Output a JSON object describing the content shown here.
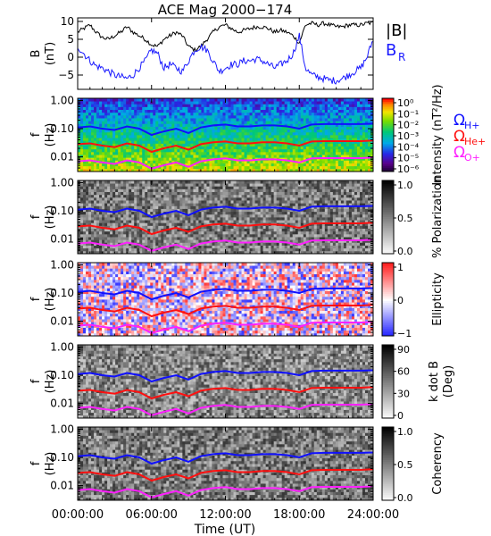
{
  "title": "ACE Mag 2000−174",
  "xaxis": {
    "label": "Time (UT)",
    "ticks": [
      "00:00:00",
      "06:00:00",
      "12:00:00",
      "18:00:00",
      "24:00:00"
    ],
    "tick_hours": [
      0,
      6,
      12,
      18,
      24
    ],
    "range_hours": [
      0,
      24
    ]
  },
  "colors": {
    "B_total": "#000000",
    "B_R": "#1a1aff",
    "omega_H": "#1010ff",
    "omega_He": "#ff1010",
    "omega_O": "#ff20ff"
  },
  "legend": {
    "B_total": "|B|",
    "B_R": "B",
    "B_R_sub": "R",
    "omega_symbol": "Ω",
    "omega_H_sub": "H+",
    "omega_He_sub": "He+",
    "omega_O_sub": "O+"
  },
  "chart_data": [
    {
      "type": "line",
      "panel": "magnetic-field",
      "ylabel": "B",
      "ylabel_unit": "(nT)",
      "ylim": [
        -9,
        11
      ],
      "yticks": [
        "10",
        "5",
        "0",
        "−5"
      ],
      "ytick_values": [
        10,
        5,
        0,
        -5
      ],
      "series": [
        {
          "name": "|B|",
          "x": [
            0,
            0.5,
            1,
            1.5,
            2,
            2.5,
            3,
            3.5,
            4,
            4.5,
            5,
            5.5,
            6,
            6.5,
            7,
            7.5,
            8,
            8.5,
            9,
            9.5,
            10,
            10.5,
            11,
            11.5,
            12,
            12.5,
            13,
            13.5,
            14,
            14.5,
            15,
            15.5,
            16,
            16.5,
            17,
            17.5,
            18,
            18.5,
            19,
            19.5,
            20,
            20.5,
            21,
            21.5,
            22,
            22.5,
            23,
            23.5,
            24
          ],
          "y": [
            7,
            8,
            9,
            7,
            5.5,
            5,
            6,
            7,
            8.5,
            7,
            6,
            5,
            3.5,
            3,
            5,
            6,
            7,
            6,
            3,
            2,
            3,
            5,
            7,
            8.5,
            9,
            8,
            7,
            7.5,
            8,
            8.5,
            8.5,
            8,
            7,
            7.5,
            7,
            6,
            4,
            9,
            9.5,
            9,
            9.5,
            9,
            8.5,
            8.5,
            9,
            9,
            9,
            9.5,
            9.5
          ]
        },
        {
          "name": "B_R",
          "x": [
            0,
            0.5,
            1,
            1.5,
            2,
            2.5,
            3,
            3.5,
            4,
            4.5,
            5,
            5.5,
            6,
            6.5,
            7,
            7.5,
            8,
            8.5,
            9,
            9.5,
            10,
            10.5,
            11,
            11.5,
            12,
            12.5,
            13,
            13.5,
            14,
            14.5,
            15,
            15.5,
            16,
            16.5,
            17,
            17.5,
            18,
            18.5,
            19,
            19.5,
            20,
            20.5,
            21,
            21.5,
            22,
            22.5,
            23,
            23.5,
            24
          ],
          "y": [
            3,
            1,
            -1,
            -2.5,
            -3,
            -4,
            -5,
            -5.5,
            -6,
            -5,
            -3,
            -1,
            2,
            1,
            -3,
            -2,
            -3,
            -4,
            -1,
            2,
            3,
            2,
            -1,
            -4,
            -3,
            -2,
            -2,
            -1,
            -1,
            -0.5,
            -1,
            -2,
            -3,
            -2,
            -1,
            1,
            6,
            -3,
            -5,
            -5.5,
            -6,
            -6.5,
            -6.5,
            -6,
            -5,
            -4,
            -3,
            0,
            5
          ]
        }
      ]
    },
    {
      "type": "heatmap",
      "panel": "intensity",
      "ylabel": "f",
      "ylabel_unit": "(Hz)",
      "yscale": "log",
      "ylim": [
        0.003,
        1.2
      ],
      "yticks": [
        "1.00",
        "0.10",
        "0.01"
      ],
      "ytick_values": [
        1,
        0.1,
        0.01
      ],
      "colorbar_label": "Intensity (nT²/Hz)",
      "colorbar_scale": "rainbow",
      "colorbar_ticks": [
        "10⁰",
        "10⁻¹",
        "10⁻²",
        "10⁻³",
        "10⁻⁴",
        "10⁻⁵",
        "10⁻⁶"
      ],
      "colorbar_range": [
        -6.5,
        0
      ]
    },
    {
      "type": "heatmap",
      "panel": "polarization",
      "ylabel": "f",
      "ylabel_unit": "(Hz)",
      "yscale": "log",
      "ylim": [
        0.003,
        1.2
      ],
      "yticks": [
        "1.00",
        "0.10",
        "0.01"
      ],
      "ytick_values": [
        1,
        0.1,
        0.01
      ],
      "colorbar_label": "% Polarization",
      "colorbar_scale": "gray",
      "colorbar_ticks": [
        "1.0",
        "0.5",
        "0.0"
      ],
      "colorbar_range": [
        0,
        1
      ]
    },
    {
      "type": "heatmap",
      "panel": "ellipticity",
      "ylabel": "f",
      "ylabel_unit": "(Hz)",
      "yscale": "log",
      "ylim": [
        0.003,
        1.2
      ],
      "yticks": [
        "1.00",
        "0.10",
        "0.01"
      ],
      "ytick_values": [
        1,
        0.1,
        0.01
      ],
      "colorbar_label": "Ellipticity",
      "colorbar_scale": "blue-white-red",
      "colorbar_ticks": [
        "1",
        "0",
        "−1"
      ],
      "colorbar_range": [
        -1,
        1
      ]
    },
    {
      "type": "heatmap",
      "panel": "k-dot-b",
      "ylabel": "f",
      "ylabel_unit": "(Hz)",
      "yscale": "log",
      "ylim": [
        0.003,
        1.2
      ],
      "yticks": [
        "1.00",
        "0.10",
        "0.01"
      ],
      "ytick_values": [
        1,
        0.1,
        0.01
      ],
      "colorbar_label": "k dot B",
      "colorbar_label2": "(Deg)",
      "colorbar_scale": "gray",
      "colorbar_ticks": [
        "90",
        "60",
        "30",
        "0"
      ],
      "colorbar_range": [
        0,
        90
      ]
    },
    {
      "type": "heatmap",
      "panel": "coherency",
      "ylabel": "f",
      "ylabel_unit": "(Hz)",
      "yscale": "log",
      "ylim": [
        0.003,
        1.2
      ],
      "yticks": [
        "1.00",
        "0.10",
        "0.01"
      ],
      "ytick_values": [
        1,
        0.1,
        0.01
      ],
      "colorbar_label": "Coherency",
      "colorbar_scale": "gray",
      "colorbar_ticks": [
        "1.0",
        "0.5",
        "0.0"
      ],
      "colorbar_range": [
        0,
        1
      ]
    }
  ],
  "gyrofrequency_lines": {
    "x_hours": [
      0,
      1,
      2,
      3,
      4,
      5,
      6,
      7,
      8,
      9,
      10,
      11,
      12,
      13,
      14,
      15,
      16,
      17,
      18,
      19,
      20,
      21,
      22,
      23,
      24
    ],
    "omega_H": [
      0.11,
      0.12,
      0.1,
      0.09,
      0.12,
      0.1,
      0.06,
      0.08,
      0.1,
      0.07,
      0.11,
      0.13,
      0.14,
      0.12,
      0.12,
      0.13,
      0.13,
      0.12,
      0.1,
      0.14,
      0.145,
      0.145,
      0.145,
      0.145,
      0.15
    ],
    "omega_He": [
      0.028,
      0.03,
      0.025,
      0.022,
      0.03,
      0.025,
      0.015,
      0.02,
      0.025,
      0.018,
      0.028,
      0.033,
      0.035,
      0.03,
      0.03,
      0.033,
      0.033,
      0.03,
      0.025,
      0.035,
      0.036,
      0.036,
      0.036,
      0.036,
      0.038
    ],
    "omega_O": [
      0.0069,
      0.0075,
      0.0063,
      0.0056,
      0.0075,
      0.0063,
      0.0038,
      0.005,
      0.0063,
      0.0044,
      0.0069,
      0.0081,
      0.0088,
      0.0075,
      0.0075,
      0.0081,
      0.0081,
      0.0075,
      0.0063,
      0.0088,
      0.009,
      0.009,
      0.009,
      0.009,
      0.0094
    ]
  }
}
